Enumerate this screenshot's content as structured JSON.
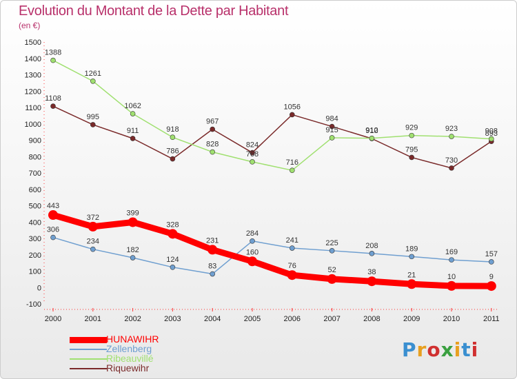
{
  "header": {
    "title": "Evolution du Montant de la Dette par Habitant",
    "unit": "(en €)"
  },
  "logo": {
    "text": "Proxiti",
    "colors": [
      "#3a8fd0",
      "#e8a020",
      "#d03030",
      "#3aa040",
      "#e8a020",
      "#3a8fd0",
      "#d03030"
    ]
  },
  "chart_data": {
    "type": "line",
    "title": "Evolution du Montant de la Dette par Habitant",
    "ylabel": "(en €)",
    "xlabel": "",
    "x": [
      "2000",
      "2001",
      "2002",
      "2003",
      "2004",
      "2005",
      "2006",
      "2007",
      "2008",
      "2009",
      "2010",
      "2011"
    ],
    "ylim": [
      -100,
      1500
    ],
    "yticks": [
      "-100",
      "0",
      "100",
      "200",
      "300",
      "400",
      "500",
      "600",
      "700",
      "800",
      "900",
      "1000",
      "1100",
      "1200",
      "1300",
      "1400",
      "1500"
    ],
    "grid": false,
    "legend_position": "bottom-left",
    "series": [
      {
        "name": "HUNAWIHR",
        "color": "#ff0000",
        "values": [
          443,
          372,
          399,
          328,
          231,
          160,
          76,
          52,
          38,
          21,
          10,
          9
        ],
        "labels": [
          "443",
          "372",
          "399",
          "328",
          "231",
          "160",
          "76",
          "52",
          "38",
          "21",
          "10",
          "9"
        ]
      },
      {
        "name": "Zellenberg",
        "color": "#6f9fd0",
        "values": [
          306,
          234,
          182,
          124,
          83,
          284,
          241,
          225,
          208,
          189,
          169,
          157
        ],
        "labels": [
          "306",
          "234",
          "182",
          "124",
          "83",
          "284",
          "241",
          "225",
          "208",
          "189",
          "169",
          "157"
        ]
      },
      {
        "name": "Ribeauvillé",
        "color": "#a0e070",
        "values": [
          1388,
          1261,
          1062,
          918,
          828,
          768,
          716,
          915,
          912,
          929,
          923,
          908
        ],
        "labels": [
          "1388",
          "1261",
          "1062",
          "918",
          "828",
          "768",
          "716",
          "915",
          "912",
          "929",
          "923",
          "908"
        ]
      },
      {
        "name": "Riquewihr",
        "color": "#7a2a2a",
        "values": [
          1108,
          995,
          911,
          786,
          967,
          824,
          1056,
          984,
          910,
          795,
          730,
          893
        ],
        "labels": [
          "1108",
          "995",
          "911",
          "786",
          "967",
          "824",
          "1056",
          "984",
          "910",
          "795",
          "730",
          "893"
        ]
      }
    ]
  }
}
